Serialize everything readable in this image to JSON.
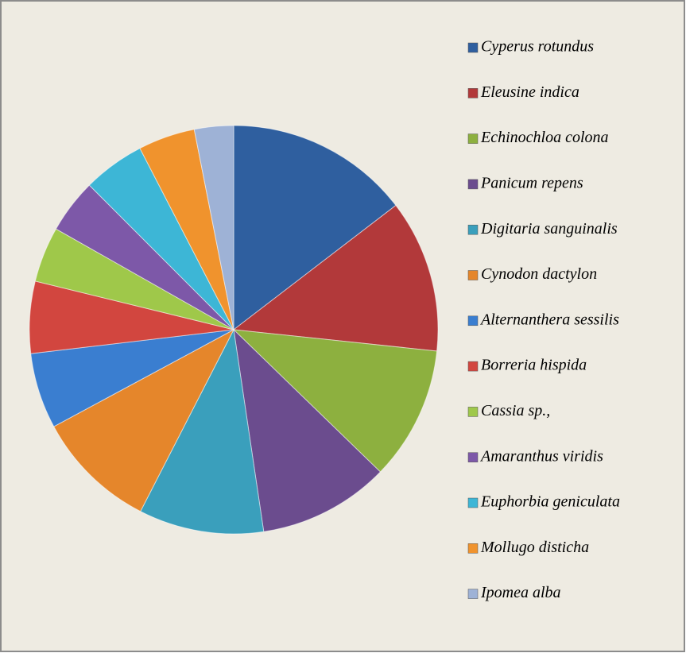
{
  "chart_data": {
    "type": "pie",
    "categories": [
      "Cyperus rotundus",
      "Eleusine indica",
      "Echinochloa colona",
      "Panicum repens",
      "Digitaria sanguinalis",
      "Cynodon dactylon",
      "Alternanthera sessilis",
      "Borreria hispida",
      "Cassia sp.,",
      "Amaranthus viridis",
      "Euphorbia geniculata",
      "Mollugo disticha",
      "Ipomea alba"
    ],
    "values": [
      14.6,
      12.1,
      10.6,
      10.4,
      9.9,
      9.6,
      6.0,
      5.7,
      4.4,
      4.3,
      4.9,
      4.5,
      3.1
    ],
    "colors": [
      "#2f5f9f",
      "#b2393a",
      "#8db03f",
      "#6b4c8e",
      "#3a9fbc",
      "#e5862b",
      "#3a7ed0",
      "#d2463f",
      "#9fc84a",
      "#7d58a8",
      "#3db6d6",
      "#f0932d",
      "#9eb2d6"
    ],
    "legend": "right"
  }
}
